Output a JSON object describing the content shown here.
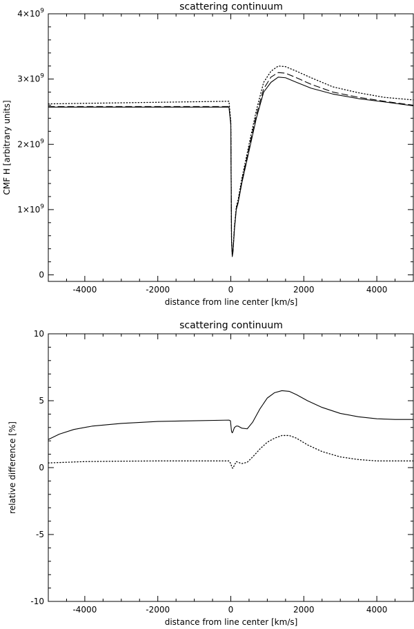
{
  "chart_data": [
    {
      "type": "line",
      "title": "scattering continuum",
      "xlabel": "distance from line center [km/s]",
      "ylabel": "CMF H [arbitrary units]",
      "xlim": [
        -5000,
        5000
      ],
      "ylim": [
        -100000000.0,
        4000000000.0
      ],
      "xticks": [
        -4000,
        -2000,
        0,
        2000,
        4000
      ],
      "xtick_labels": [
        "-4000",
        "-2000",
        "0",
        "2000",
        "4000"
      ],
      "yticks": [
        0,
        1000000000.0,
        2000000000.0,
        3000000000.0,
        4000000000.0
      ],
      "ytick_labels": [
        {
          "base": "0",
          "exp": ""
        },
        {
          "base": "1×10",
          "exp": "9"
        },
        {
          "base": "2×10",
          "exp": "9"
        },
        {
          "base": "3×10",
          "exp": "9"
        },
        {
          "base": "4×10",
          "exp": "9"
        }
      ],
      "grid": false,
      "series": [
        {
          "style": "solid",
          "x": [
            -5000,
            -50,
            0,
            20,
            40,
            60,
            100,
            150,
            200,
            300,
            500,
            700,
            900,
            1100,
            1300,
            1500,
            1800,
            2200,
            2800,
            3500,
            4200,
            5000
          ],
          "values": [
            2570000000.0,
            2570000000.0,
            2300000000.0,
            500000000.0,
            280000000.0,
            350000000.0,
            700000000.0,
            1000000000.0,
            1100000000.0,
            1400000000.0,
            1900000000.0,
            2400000000.0,
            2800000000.0,
            2950000000.0,
            3030000000.0,
            3020000000.0,
            2950000000.0,
            2860000000.0,
            2770000000.0,
            2700000000.0,
            2650000000.0,
            2590000000.0
          ]
        },
        {
          "style": "dashed",
          "x": [
            -5000,
            -50,
            0,
            20,
            40,
            60,
            100,
            150,
            200,
            300,
            500,
            700,
            900,
            1100,
            1300,
            1500,
            1800,
            2200,
            2800,
            3500,
            4200,
            5000
          ],
          "values": [
            2580000000.0,
            2580000000.0,
            2320000000.0,
            520000000.0,
            300000000.0,
            370000000.0,
            720000000.0,
            1020000000.0,
            1120000000.0,
            1430000000.0,
            1950000000.0,
            2450000000.0,
            2850000000.0,
            3030000000.0,
            3100000000.0,
            3090000000.0,
            3020000000.0,
            2920000000.0,
            2800000000.0,
            2720000000.0,
            2660000000.0,
            2600000000.0
          ]
        },
        {
          "style": "dotted",
          "x": [
            -5000,
            -50,
            0,
            20,
            40,
            60,
            100,
            150,
            200,
            300,
            500,
            700,
            900,
            1100,
            1300,
            1500,
            1800,
            2200,
            2800,
            3500,
            4200,
            5000
          ],
          "values": [
            2620000000.0,
            2660000000.0,
            2350000000.0,
            550000000.0,
            310000000.0,
            380000000.0,
            740000000.0,
            1040000000.0,
            1150000000.0,
            1470000000.0,
            2000000000.0,
            2520000000.0,
            2950000000.0,
            3120000000.0,
            3200000000.0,
            3190000000.0,
            3120000000.0,
            3020000000.0,
            2880000000.0,
            2790000000.0,
            2720000000.0,
            2680000000.0
          ]
        }
      ]
    },
    {
      "type": "line",
      "title": "scattering continuum",
      "xlabel": "distance from line center [km/s]",
      "ylabel": "relative difference [%]",
      "xlim": [
        -5000,
        5000
      ],
      "ylim": [
        -10,
        10
      ],
      "xticks": [
        -4000,
        -2000,
        0,
        2000,
        4000
      ],
      "xtick_labels": [
        "-4000",
        "-2000",
        "0",
        "2000",
        "4000"
      ],
      "yticks": [
        -10,
        -5,
        0,
        5,
        10
      ],
      "ytick_labels": [
        {
          "base": "-10",
          "exp": ""
        },
        {
          "base": "-5",
          "exp": ""
        },
        {
          "base": "0",
          "exp": ""
        },
        {
          "base": "5",
          "exp": ""
        },
        {
          "base": "10",
          "exp": ""
        }
      ],
      "grid": false,
      "series": [
        {
          "style": "solid",
          "x": [
            -5000,
            -4700,
            -4300,
            -3800,
            -3000,
            -2000,
            -1000,
            -50,
            -10,
            20,
            40,
            60,
            100,
            150,
            200,
            300,
            450,
            600,
            800,
            1000,
            1200,
            1400,
            1600,
            1800,
            2100,
            2500,
            3000,
            3500,
            4000,
            4500,
            5000
          ],
          "values": [
            2.1,
            2.5,
            2.85,
            3.1,
            3.3,
            3.45,
            3.5,
            3.55,
            3.5,
            2.7,
            2.6,
            2.7,
            3.0,
            3.1,
            3.1,
            2.95,
            2.9,
            3.4,
            4.4,
            5.2,
            5.6,
            5.75,
            5.7,
            5.45,
            5.0,
            4.5,
            4.05,
            3.8,
            3.65,
            3.6,
            3.6
          ]
        },
        {
          "style": "dotted",
          "x": [
            -5000,
            -4000,
            -3000,
            -2000,
            -1000,
            -50,
            0,
            30,
            60,
            100,
            150,
            200,
            300,
            450,
            600,
            800,
            1000,
            1200,
            1400,
            1600,
            1800,
            2100,
            2500,
            3000,
            3500,
            4000,
            4500,
            5000
          ],
          "values": [
            0.35,
            0.45,
            0.48,
            0.5,
            0.5,
            0.5,
            0.3,
            0.0,
            -0.05,
            0.2,
            0.45,
            0.4,
            0.3,
            0.4,
            0.8,
            1.4,
            1.9,
            2.2,
            2.4,
            2.4,
            2.2,
            1.7,
            1.2,
            0.8,
            0.6,
            0.5,
            0.5,
            0.5
          ]
        }
      ]
    }
  ]
}
